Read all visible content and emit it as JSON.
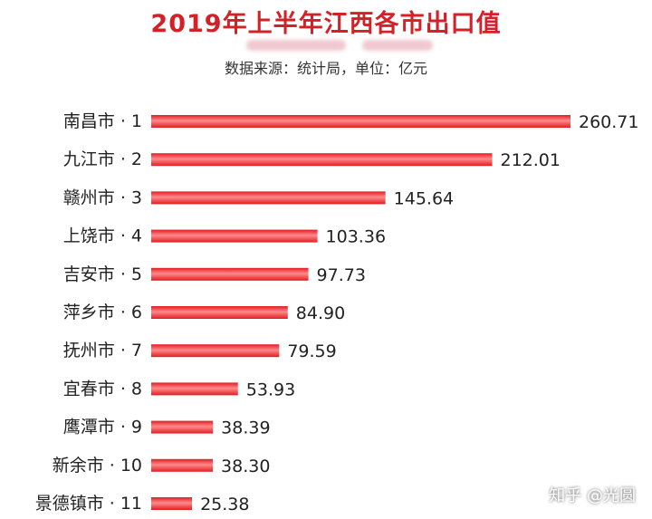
{
  "title": "2019年上半年江西各市出口值",
  "subtitle": "数据来源：统计局，单位：亿元",
  "watermark": "知乎 @光圆",
  "colors": {
    "bar": "#e11c22",
    "bar_highlight": "#ff8a8a",
    "title": "#d42027",
    "text": "#222222"
  },
  "chart_data": {
    "type": "bar",
    "orientation": "horizontal",
    "categories": [
      "南昌市 · 1",
      "九江市 · 2",
      "赣州市 · 3",
      "上饶市 · 4",
      "吉安市 · 5",
      "萍乡市 · 6",
      "抚州市 · 7",
      "宜春市 · 8",
      "鹰潭市 · 9",
      "新余市 · 10",
      "景德镇市 · 11"
    ],
    "values": [
      260.71,
      212.01,
      145.64,
      103.36,
      97.73,
      84.9,
      79.59,
      53.93,
      38.39,
      38.3,
      25.38
    ],
    "value_labels": [
      "260.71",
      "212.01",
      "145.64",
      "103.36",
      "97.73",
      "84.90",
      "79.59",
      "53.93",
      "38.39",
      "38.30",
      "25.38"
    ],
    "xlim": [
      0,
      260.71
    ],
    "grid": false,
    "legend": "none"
  }
}
